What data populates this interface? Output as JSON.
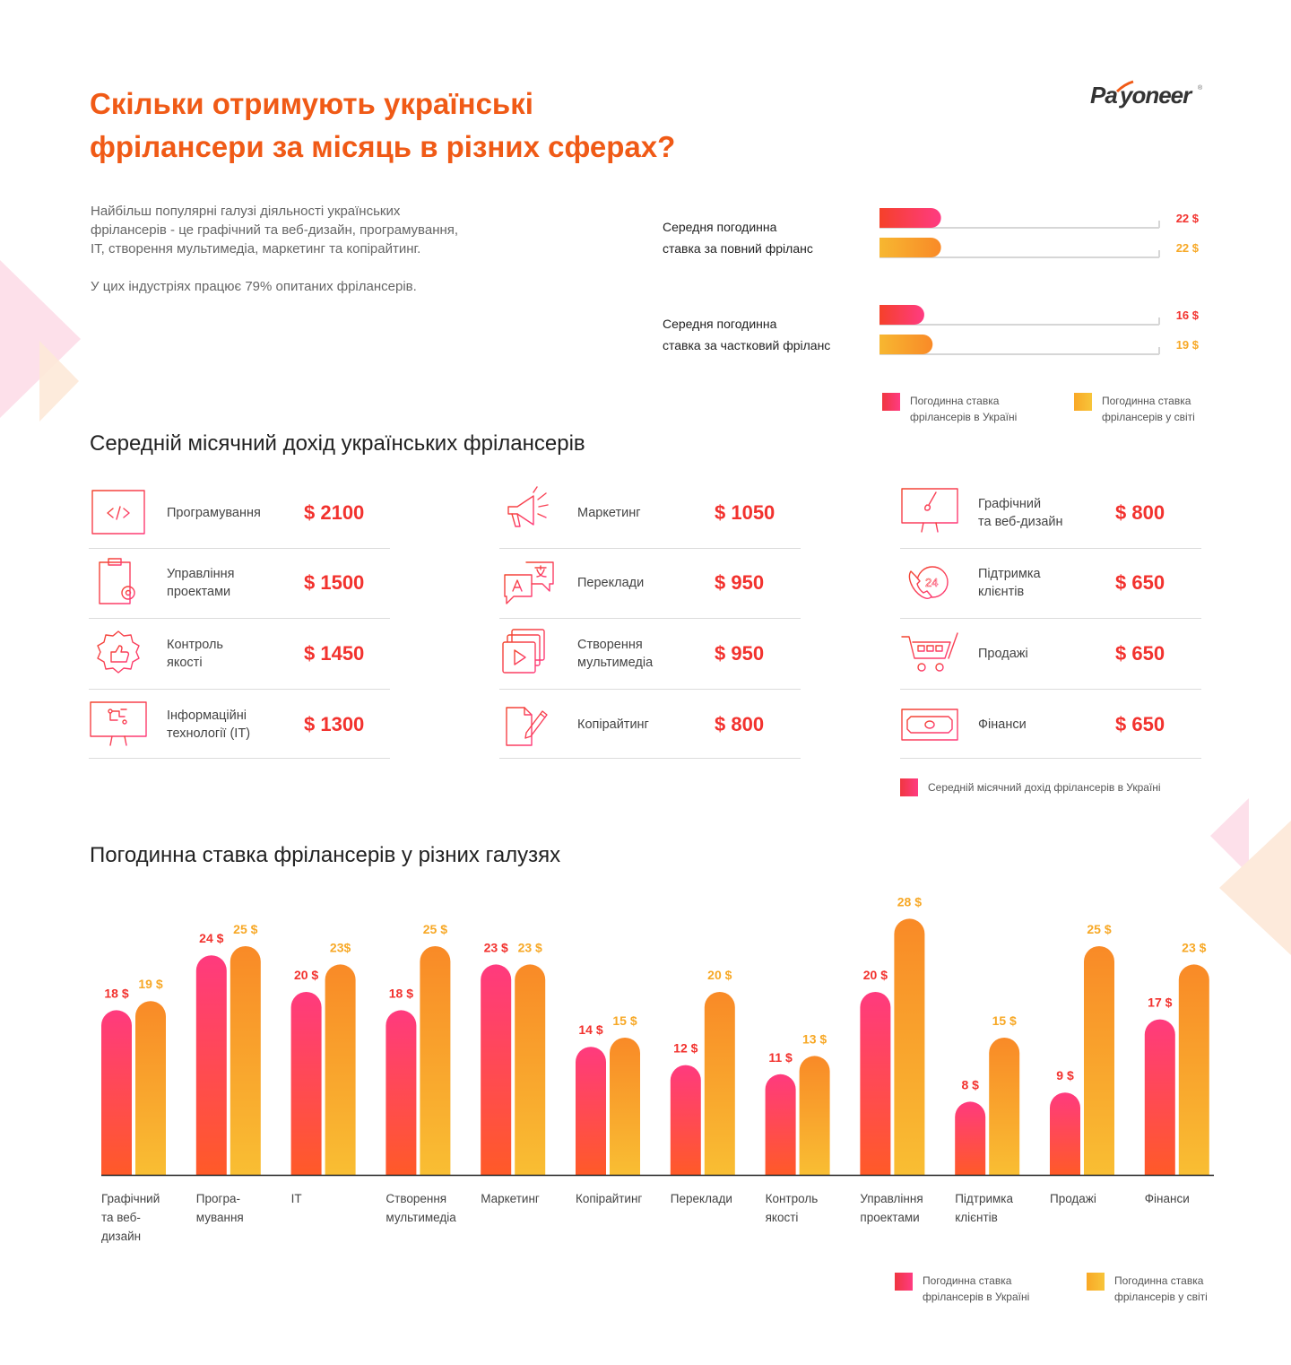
{
  "brand": {
    "logo_text": "Payoneer",
    "primary": "#f05a16",
    "ukraine_color": "#f5336d",
    "world_color": "#f9a826"
  },
  "header": {
    "title_line1": "Скільки отримують українські",
    "title_line2": "фрілансери за місяць в різних сферах?"
  },
  "intro": {
    "p1_line1": "Найбільш популярні галузі діяльності українських",
    "p1_line2": "фрілансерів - це графічний та веб-дизайн, програмування,",
    "p1_line3": "IT, створення мультимедіа, маркетинг та копірайтинг.",
    "p2": "У цих індустріях працює 79% опитаних фрілансерів."
  },
  "rate_bars": {
    "max": 100,
    "groups": [
      {
        "label_line1": "Середня погодинна",
        "label_line2": "ставка за повний фріланс",
        "ukraine": 22,
        "world": 22,
        "ukraine_label": "22 $",
        "world_label": "22 $"
      },
      {
        "label_line1": "Середня погодинна",
        "label_line2": "ставка за частковий фріланс",
        "ukraine": 16,
        "world": 19,
        "ukraine_label": "16 $",
        "world_label": "19 $"
      }
    ],
    "legend_ukraine_line1": "Погодинна ставка",
    "legend_ukraine_line2": "фрілансерів в Україні",
    "legend_world_line1": "Погодинна ставка",
    "legend_world_line2": "фрілансерів у світі"
  },
  "monthly": {
    "heading": "Середній місячний дохід українських фрілансерів",
    "columns": [
      [
        {
          "icon": "code-window-icon",
          "label_line1": "Програмування",
          "label_line2": "",
          "value": "$ 2100"
        },
        {
          "icon": "clipboard-gear-icon",
          "label_line1": "Управління",
          "label_line2": "проектами",
          "value": "$ 1500"
        },
        {
          "icon": "thumbs-up-badge-icon",
          "label_line1": "Контроль",
          "label_line2": "якості",
          "value": "$ 1450"
        },
        {
          "icon": "monitor-circuit-icon",
          "label_line1": "Інформаційні",
          "label_line2": "технології (IT)",
          "value": "$ 1300"
        }
      ],
      [
        {
          "icon": "megaphone-icon",
          "label_line1": "Маркетинг",
          "label_line2": "",
          "value": "$ 1050"
        },
        {
          "icon": "translate-bubbles-icon",
          "label_line1": "Переклади",
          "label_line2": "",
          "value": "$ 950"
        },
        {
          "icon": "media-play-icon",
          "label_line1": "Створення",
          "label_line2": "мультимедіа",
          "value": "$ 950"
        },
        {
          "icon": "document-pen-icon",
          "label_line1": "Копірайтинг",
          "label_line2": "",
          "value": "$ 800"
        }
      ],
      [
        {
          "icon": "monitor-brush-icon",
          "label_line1": "Графічний",
          "label_line2": "та веб-дизайн",
          "value": "$ 800"
        },
        {
          "icon": "phone-24-icon",
          "label_line1": "Підтримка",
          "label_line2": "клієнтів",
          "value": "$ 650"
        },
        {
          "icon": "shopping-cart-icon",
          "label_line1": "Продажі",
          "label_line2": "",
          "value": "$ 650"
        },
        {
          "icon": "banknote-icon",
          "label_line1": "Фінанси",
          "label_line2": "",
          "value": "$ 650"
        }
      ]
    ],
    "legend": "Середній місячний дохід фрілансерів в Україні"
  },
  "chart_data": {
    "type": "bar",
    "title": "Погодинна ставка фрілансерів у різних галузях",
    "categories": [
      [
        "Графічний",
        "та веб-",
        "дизайн"
      ],
      [
        "Програ-",
        "мування"
      ],
      [
        "IT"
      ],
      [
        "Створення",
        "мультимедіа"
      ],
      [
        "Маркетинг"
      ],
      [
        "Копірайтинг"
      ],
      [
        "Переклади"
      ],
      [
        "Контроль",
        "якості"
      ],
      [
        "Управління",
        "проектами"
      ],
      [
        "Підтримка",
        "клієнтів"
      ],
      [
        "Продажі"
      ],
      [
        "Фінанси"
      ]
    ],
    "series": [
      {
        "name": "Погодинна ставка фрілансерів в Україні",
        "values": [
          18,
          24,
          20,
          18,
          23,
          14,
          12,
          11,
          20,
          8,
          9,
          17
        ],
        "labels": [
          "18 $",
          "24 $",
          "20 $",
          "18 $",
          "23 $",
          "14 $",
          "12 $",
          "11 $",
          "20 $",
          "8 $",
          "9 $",
          "17 $"
        ]
      },
      {
        "name": "Погодинна ставка фрілансерів у світі",
        "values": [
          19,
          25,
          23,
          25,
          23,
          15,
          20,
          13,
          28,
          15,
          25,
          23
        ],
        "labels": [
          "19 $",
          "25 $",
          "23$",
          "25 $",
          "23 $",
          "15 $",
          "20 $",
          "13 $",
          "28 $",
          "15 $",
          "25 $",
          "23 $"
        ]
      }
    ],
    "ylim": [
      0,
      30
    ],
    "grid": false,
    "legend_position": "bottom-right",
    "legend_ukraine_line1": "Погодинна ставка",
    "legend_ukraine_line2": "фрілансерів в Україні",
    "legend_world_line1": "Погодинна ставка",
    "legend_world_line2": "фрілансерів у світі"
  }
}
